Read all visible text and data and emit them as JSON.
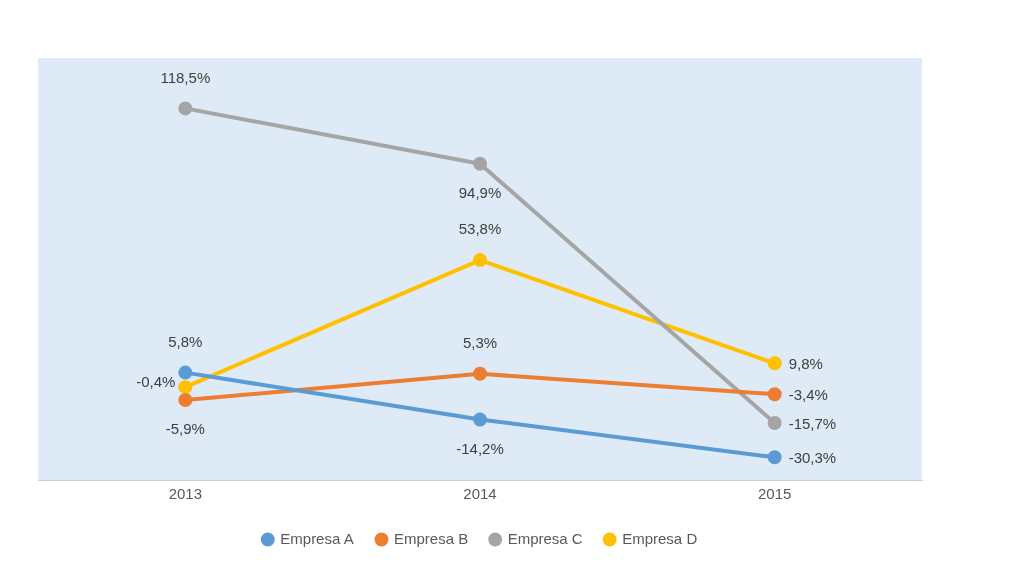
{
  "chart_data": {
    "type": "line",
    "categories": [
      "2013",
      "2014",
      "2015"
    ],
    "series": [
      {
        "name": "Empresa A",
        "color": "#5b9bd5",
        "values": [
          5.8,
          -14.2,
          -30.3
        ],
        "value_labels": [
          "5,8%",
          "-14,2%",
          "-30,3%"
        ]
      },
      {
        "name": "Empresa B",
        "color": "#ed7d31",
        "values": [
          -5.9,
          5.3,
          -3.4
        ],
        "value_labels": [
          "-5,9%",
          "5,3%",
          "-3,4%"
        ]
      },
      {
        "name": "Empresa C",
        "color": "#a5a5a5",
        "values": [
          118.5,
          94.9,
          -15.7
        ],
        "value_labels": [
          "118,5%",
          "94,9%",
          "-15,7%"
        ]
      },
      {
        "name": "Empresa D",
        "color": "#ffc000",
        "values": [
          -0.4,
          53.8,
          9.8
        ],
        "value_labels": [
          "-0,4%",
          "53,8%",
          "9,8%"
        ]
      }
    ],
    "legend": "bottom",
    "marker": "circle",
    "line_style": "solid",
    "grid": false
  }
}
